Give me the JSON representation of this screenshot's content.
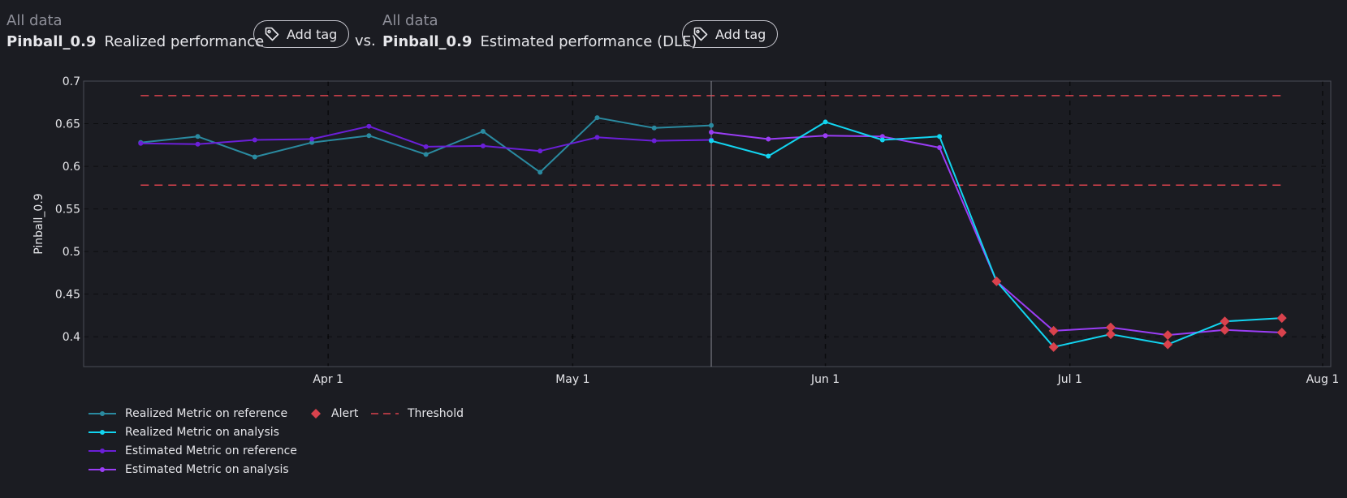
{
  "left_header": {
    "scope": "All data",
    "metric": "Pinball_0.9",
    "label": "Realized performance",
    "tag_button": "Add tag"
  },
  "vs_label": "vs.",
  "right_header": {
    "scope": "All data",
    "metric": "Pinball_0.9",
    "label": "Estimated performance (DLE)",
    "tag_button": "Add tag"
  },
  "icons": {
    "tag": "tag-icon"
  },
  "colors": {
    "background": "#1b1c22",
    "realized_reference": "#2a8aa0",
    "realized_analysis": "#12d4f0",
    "estimated_reference": "#6b1fd8",
    "estimated_analysis": "#9a3df5",
    "alert": "#d9424d",
    "threshold": "#d9424d"
  },
  "chart_data": {
    "type": "line",
    "ylabel": "Pinball_0.9",
    "xlabel": "",
    "x_axis": "date",
    "xlim": [
      "2023-03-02",
      "2023-08-02"
    ],
    "ylim": [
      0.365,
      0.7
    ],
    "yticks": [
      0.4,
      0.45,
      0.5,
      0.55,
      0.6,
      0.65,
      0.7
    ],
    "ytick_labels": [
      "0.4",
      "0.45",
      "0.5",
      "0.55",
      "0.6",
      "0.65",
      "0.7"
    ],
    "xticks": [
      "2023-04-01",
      "2023-05-01",
      "2023-06-01",
      "2023-07-01",
      "2023-08-01"
    ],
    "xtick_labels": [
      "Apr 1",
      "May 1",
      "Jun 1",
      "Jul 1",
      "Aug 1"
    ],
    "grid": true,
    "reference_analysis_split": "2023-05-18",
    "thresholds": [
      0.683,
      0.578
    ],
    "series": [
      {
        "name": "Realized Metric on reference",
        "x": [
          "2023-03-09",
          "2023-03-16",
          "2023-03-23",
          "2023-03-30",
          "2023-04-06",
          "2023-04-13",
          "2023-04-20",
          "2023-04-27",
          "2023-05-04",
          "2023-05-11",
          "2023-05-18"
        ],
        "y": [
          0.628,
          0.635,
          0.611,
          0.628,
          0.636,
          0.614,
          0.641,
          0.593,
          0.657,
          0.645,
          0.648
        ]
      },
      {
        "name": "Realized Metric on analysis",
        "x": [
          "2023-05-18",
          "2023-05-25",
          "2023-06-01",
          "2023-06-08",
          "2023-06-15",
          "2023-06-22",
          "2023-06-29",
          "2023-07-06",
          "2023-07-13",
          "2023-07-20",
          "2023-07-27"
        ],
        "y": [
          0.63,
          0.612,
          0.652,
          0.631,
          0.635,
          0.465,
          0.388,
          0.403,
          0.391,
          0.418,
          0.422
        ]
      },
      {
        "name": "Estimated Metric on reference",
        "x": [
          "2023-03-09",
          "2023-03-16",
          "2023-03-23",
          "2023-03-30",
          "2023-04-06",
          "2023-04-13",
          "2023-04-20",
          "2023-04-27",
          "2023-05-04",
          "2023-05-11",
          "2023-05-18"
        ],
        "y": [
          0.627,
          0.626,
          0.631,
          0.632,
          0.647,
          0.623,
          0.624,
          0.618,
          0.634,
          0.63,
          0.631
        ]
      },
      {
        "name": "Estimated Metric on analysis",
        "x": [
          "2023-05-18",
          "2023-05-25",
          "2023-06-01",
          "2023-06-08",
          "2023-06-15",
          "2023-06-22",
          "2023-06-29",
          "2023-07-06",
          "2023-07-13",
          "2023-07-20",
          "2023-07-27"
        ],
        "y": [
          0.64,
          0.632,
          0.636,
          0.635,
          0.622,
          0.465,
          0.407,
          0.411,
          0.402,
          0.408,
          0.405
        ]
      }
    ],
    "alerts": [
      {
        "x": "2023-06-22",
        "y": 0.465
      },
      {
        "x": "2023-06-29",
        "y": 0.388
      },
      {
        "x": "2023-06-29",
        "y": 0.407
      },
      {
        "x": "2023-07-06",
        "y": 0.403
      },
      {
        "x": "2023-07-06",
        "y": 0.411
      },
      {
        "x": "2023-07-13",
        "y": 0.391
      },
      {
        "x": "2023-07-13",
        "y": 0.402
      },
      {
        "x": "2023-07-20",
        "y": 0.418
      },
      {
        "x": "2023-07-20",
        "y": 0.408
      },
      {
        "x": "2023-07-27",
        "y": 0.422
      },
      {
        "x": "2023-07-27",
        "y": 0.405
      }
    ],
    "legend": {
      "placement": "bottom-left",
      "items": [
        "Realized Metric on reference",
        "Realized Metric on analysis",
        "Estimated Metric on reference",
        "Estimated Metric on analysis",
        "Alert",
        "Threshold"
      ]
    }
  }
}
